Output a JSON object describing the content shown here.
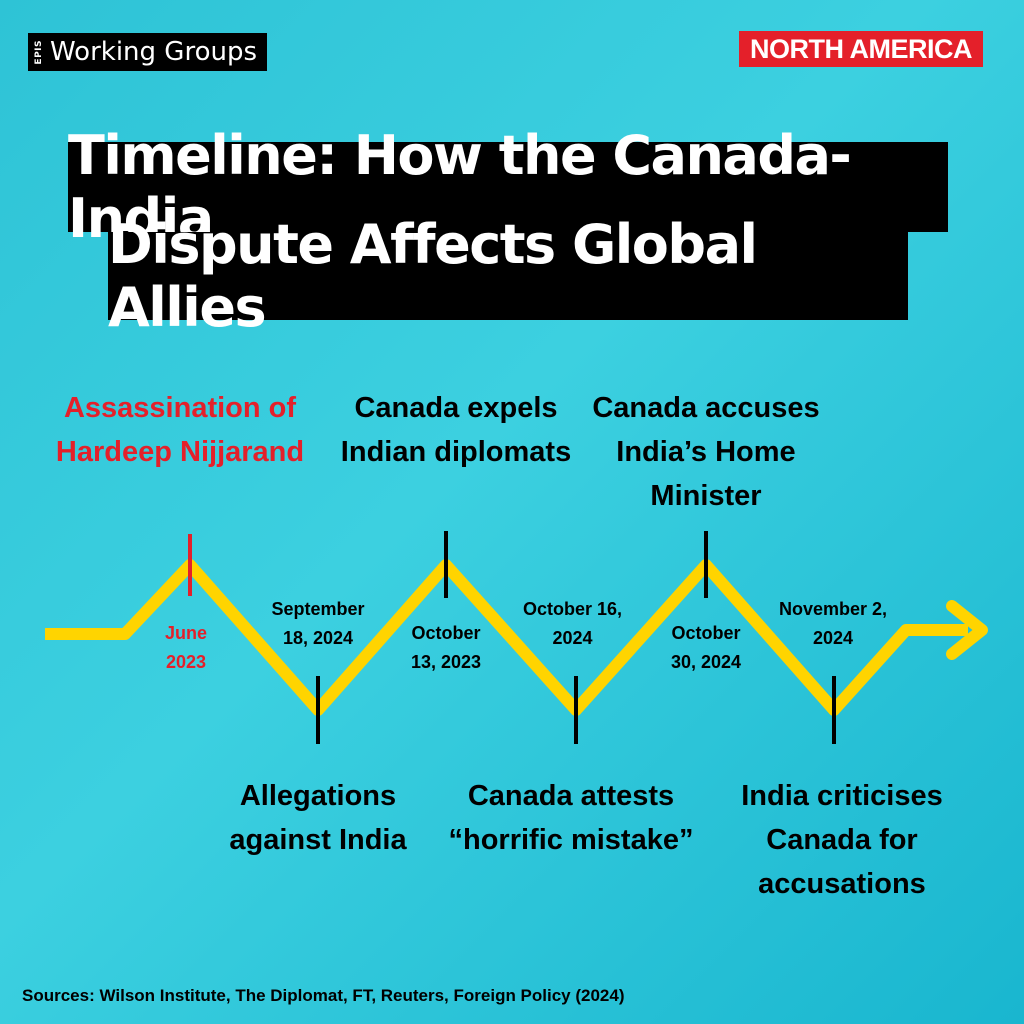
{
  "brand": {
    "mark": "EPIS",
    "name": "Working Groups"
  },
  "region_badge": "NORTH AMERICA",
  "title": {
    "line1": "Timeline: How the Canada-India",
    "line2": "Dispute Affects Global Allies"
  },
  "colors": {
    "background": "#2ec3d6",
    "timeline_line": "#ffd400",
    "highlight_red": "#e4202a",
    "title_bg": "#000000"
  },
  "events": [
    {
      "date_line1": "June",
      "date_line2": "2023",
      "label_line1": "Assassination of",
      "label_line2": "Hardeep Nijjarand",
      "label_line3": "",
      "position": "top",
      "highlight": true
    },
    {
      "date_line1": "September",
      "date_line2": "18, 2024",
      "label_line1": "Allegations",
      "label_line2": "against India",
      "label_line3": "",
      "position": "bottom",
      "highlight": false
    },
    {
      "date_line1": "October",
      "date_line2": "13, 2023",
      "label_line1": "Canada expels",
      "label_line2": "Indian diplomats",
      "label_line3": "",
      "position": "top",
      "highlight": false
    },
    {
      "date_line1": "October 16,",
      "date_line2": "2024",
      "label_line1": "Canada attests",
      "label_line2": "“horrific mistake”",
      "label_line3": "",
      "position": "bottom",
      "highlight": false
    },
    {
      "date_line1": "October",
      "date_line2": "30, 2024",
      "label_line1": "Canada accuses",
      "label_line2": "India’s Home",
      "label_line3": "Minister",
      "position": "top",
      "highlight": false
    },
    {
      "date_line1": "November 2,",
      "date_line2": "2024",
      "label_line1": "India criticises",
      "label_line2": "Canada for",
      "label_line3": "accusations",
      "position": "bottom",
      "highlight": false
    }
  ],
  "sources": "Sources: Wilson Institute, The Diplomat, FT, Reuters, Foreign Policy (2024)"
}
